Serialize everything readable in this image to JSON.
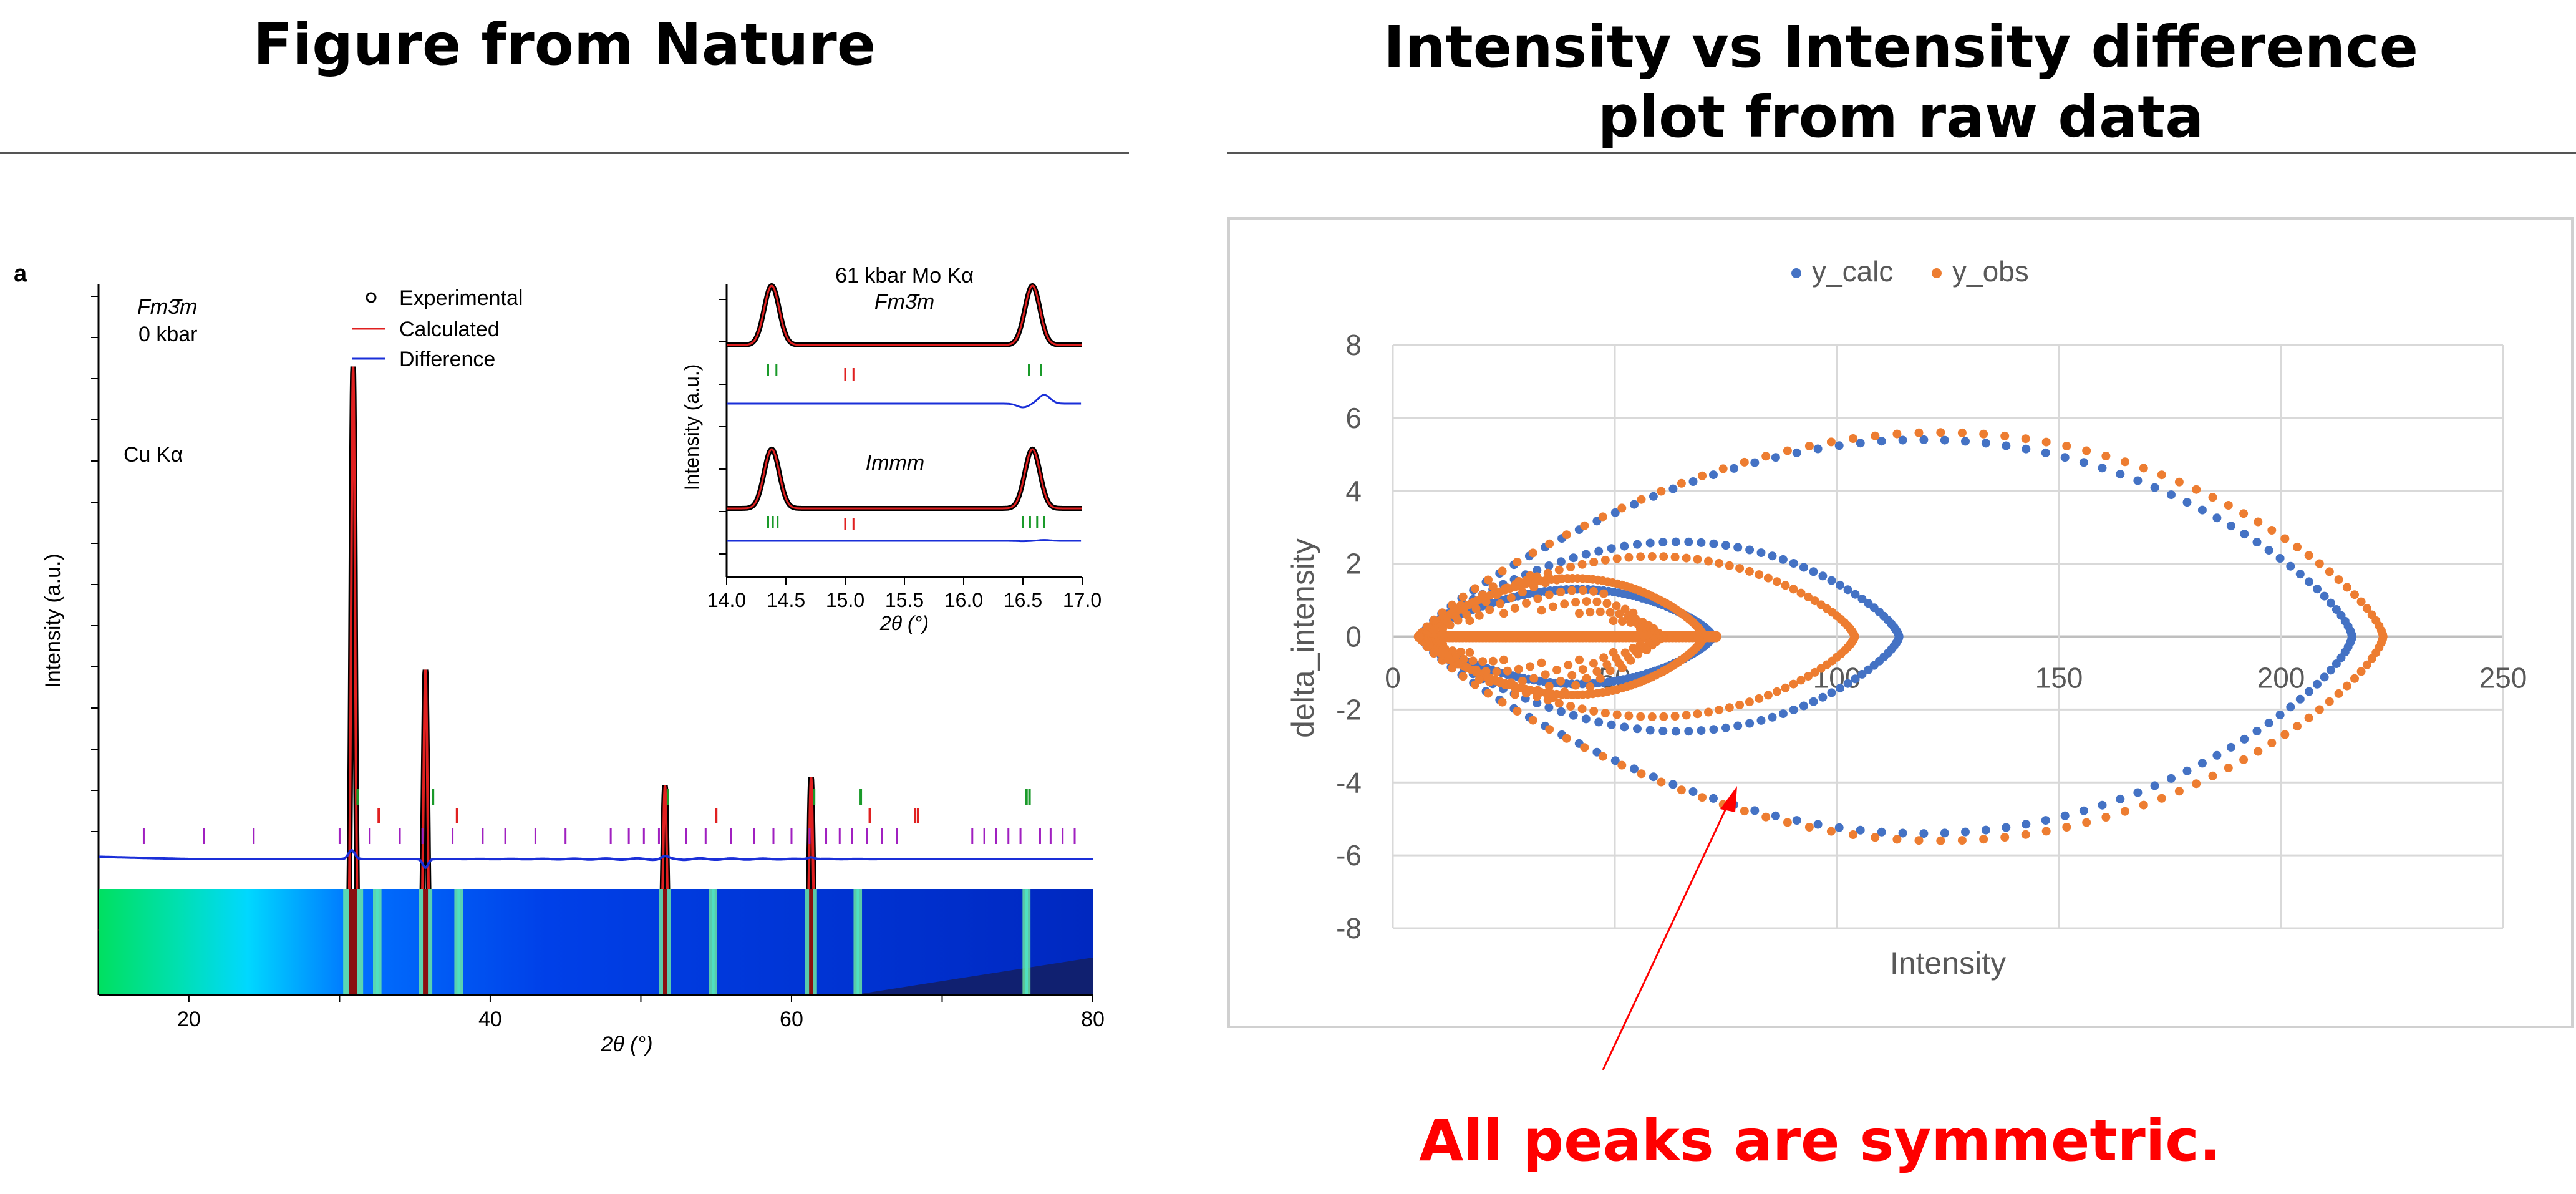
{
  "titles": {
    "left": "Figure from Nature",
    "right_line1": "Intensity vs Intensity difference",
    "right_line2": "plot from raw data"
  },
  "left_figure": {
    "panel_label": "a",
    "phase": "Fm3̄m",
    "pressure": "0 kbar",
    "source": "Cu Kα",
    "ylabel": "Intensity (a.u.)",
    "xlabel": "2θ (°)",
    "x_ticks": [
      "20",
      "40",
      "60",
      "80"
    ],
    "legend": [
      "Experimental",
      "Calculated",
      "Difference"
    ],
    "colors": {
      "experimental": "#000000",
      "calculated": "#e02020",
      "difference": "#1a2fd8",
      "tick_green": "#1a9a2a",
      "tick_red": "#e02020",
      "tick_purple": "#a020c0"
    },
    "inset": {
      "title_line1": "61 kbar Mo Kα",
      "title_line2": "Fm3̄m",
      "phase2": "Immm",
      "ylabel": "Intensity (a.u.)",
      "xlabel": "2θ (°)",
      "x_ticks": [
        "14.0",
        "14.5",
        "15.0",
        "15.5",
        "16.0",
        "16.5",
        "17.0"
      ]
    },
    "main_pattern": {
      "xlim": [
        14,
        80
      ],
      "background": [
        [
          14,
          0.32
        ],
        [
          20,
          0.29
        ],
        [
          30,
          0.14
        ],
        [
          40,
          0.1
        ],
        [
          50,
          0.08
        ],
        [
          60,
          0.06
        ],
        [
          80,
          0.03
        ]
      ],
      "peaks": [
        {
          "x": 30.9,
          "h": 1.0
        },
        {
          "x": 32.5,
          "h": 0.08
        },
        {
          "x": 35.7,
          "h": 0.5
        },
        {
          "x": 37.9,
          "h": 0.08
        },
        {
          "x": 51.6,
          "h": 0.32
        },
        {
          "x": 54.8,
          "h": 0.04
        },
        {
          "x": 61.3,
          "h": 0.34
        },
        {
          "x": 64.4,
          "h": 0.08
        },
        {
          "x": 75.6,
          "h": 0.04
        }
      ],
      "tick_green": [
        31.2,
        36.2,
        51.8,
        61.5,
        64.6,
        75.6,
        75.8
      ],
      "tick_red": [
        32.6,
        37.8,
        55.0,
        65.2,
        68.2,
        68.4
      ],
      "tick_purple": [
        17,
        21,
        24.3,
        30,
        32,
        34,
        35.5,
        37.5,
        39.5,
        41,
        43,
        45,
        48,
        49.2,
        50.2,
        51.2,
        53,
        54.3,
        56,
        57.5,
        58.8,
        60,
        61.2,
        62.3,
        63.2,
        64,
        65,
        66,
        67,
        72,
        72.8,
        73.6,
        74.4,
        75.2,
        76.5,
        77.2,
        78,
        78.8
      ]
    },
    "inset_pattern": {
      "xlim": [
        14.0,
        17.0
      ],
      "peaks": [
        {
          "x": 14.38,
          "h": 1.0
        },
        {
          "x": 16.58,
          "h": 1.0
        }
      ],
      "fm3m_ticks_green": [
        14.35,
        14.42,
        16.55,
        16.65
      ],
      "fm3m_ticks_red": [
        15.0,
        15.07
      ],
      "immm_ticks_green": [
        14.35,
        14.39,
        14.43,
        16.5,
        16.56,
        16.62,
        16.68
      ],
      "immm_ticks_red": [
        15.0,
        15.07
      ]
    }
  },
  "chart_data": {
    "type": "scatter",
    "title": "",
    "xlabel": "Intensity",
    "ylabel": "delta_intensity",
    "xlim": [
      0,
      250
    ],
    "ylim": [
      -8,
      8
    ],
    "x_ticks": [
      "0",
      "50",
      "100",
      "150",
      "200",
      "250"
    ],
    "y_ticks": [
      "8",
      "6",
      "4",
      "2",
      "0",
      "-2",
      "-4",
      "-6",
      "-8"
    ],
    "grid": true,
    "legend_position": "top",
    "series": [
      {
        "name": "y_calc",
        "color": "#4472c4",
        "loops": [
          {
            "x0": 6,
            "x1": 216,
            "apex_x": 145,
            "amp": 5.4
          },
          {
            "x0": 6,
            "x1": 114,
            "apex_x": 80,
            "amp": 2.6
          },
          {
            "x0": 6,
            "x1": 72,
            "apex_x": 55,
            "amp": 1.3
          }
        ]
      },
      {
        "name": "y_obs",
        "color": "#ed7d31",
        "loops": [
          {
            "x0": 6,
            "x1": 223,
            "apex_x": 147,
            "amp": 5.6
          },
          {
            "x0": 6,
            "x1": 104,
            "apex_x": 72,
            "amp": 2.2
          },
          {
            "x0": 6,
            "x1": 70,
            "apex_x": 50,
            "amp": 1.6
          }
        ]
      }
    ]
  },
  "annotation": {
    "text": "All peaks are symmetric.",
    "color": "#ff0000"
  }
}
